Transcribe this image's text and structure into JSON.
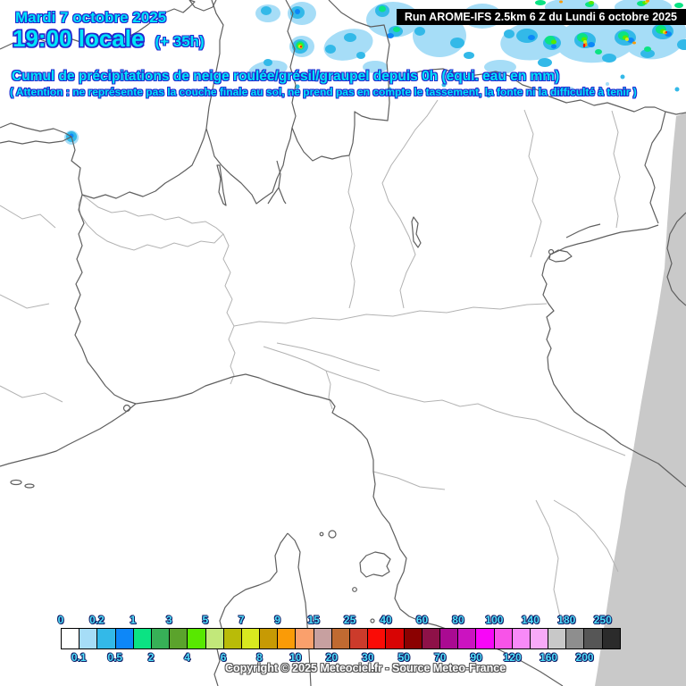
{
  "header": {
    "date_line": "Mardi 7 octobre 2025",
    "time_line": "19:00 locale",
    "time_offset": "(+ 35h)",
    "run_info": "Run AROME-IFS 2.5km 6 Z du Lundi 6 octobre 2025",
    "title": "Cumul de précipitations de neige roulée/grésil/graupel depuis 0h (équi. eau en mm)",
    "warning": "( Attention : ne représente pas la couche finale au sol, ne prend pas en compte le tassement, la fonte ni la difficulté à tenir )"
  },
  "footer": {
    "copyright": "Copyright © 2025 Meteociel.fr - Source Meteo-France"
  },
  "colors": {
    "header_text_cyan": "#00e4f8",
    "header_text_outline": "#2328cf",
    "banner_bg": "#000000",
    "banner_text": "#ffffff",
    "tick_label_cyan": "#4fdef8",
    "domain_edge_gray": "#c9c9c9",
    "border_dark": "#5f5f5f",
    "border_light": "#b2b2b2",
    "sea_land_bg": "#ffffff"
  },
  "scale": {
    "unit": "mm (équivalent eau)",
    "boundaries": [
      "0",
      "0.1",
      "0.2",
      "0.5",
      "1",
      "2",
      "3",
      "4",
      "5",
      "6",
      "7",
      "8",
      "9",
      "10",
      "15",
      "20",
      "25",
      "30",
      "40",
      "50",
      "60",
      "70",
      "80",
      "90",
      "100",
      "120",
      "140",
      "160",
      "180",
      "200",
      "250"
    ],
    "cell_colors": [
      "#ffffff",
      "#a6ddf7",
      "#33b9e8",
      "#0d87f8",
      "#0be383",
      "#37b057",
      "#5ba32c",
      "#58e800",
      "#c2e87a",
      "#b9bb08",
      "#d8e81f",
      "#c79a04",
      "#fa9b07",
      "#faa06c",
      "#c7a0a0",
      "#c06a31",
      "#cc3b2b",
      "#fa0c06",
      "#d80404",
      "#8b0101",
      "#8e1148",
      "#aa0a92",
      "#cb13c0",
      "#f806f8",
      "#f853e8",
      "#f88af8",
      "#f8aaf8",
      "#c8c8c8",
      "#8e8e8e",
      "#565656",
      "#2b2b2b"
    ]
  }
}
